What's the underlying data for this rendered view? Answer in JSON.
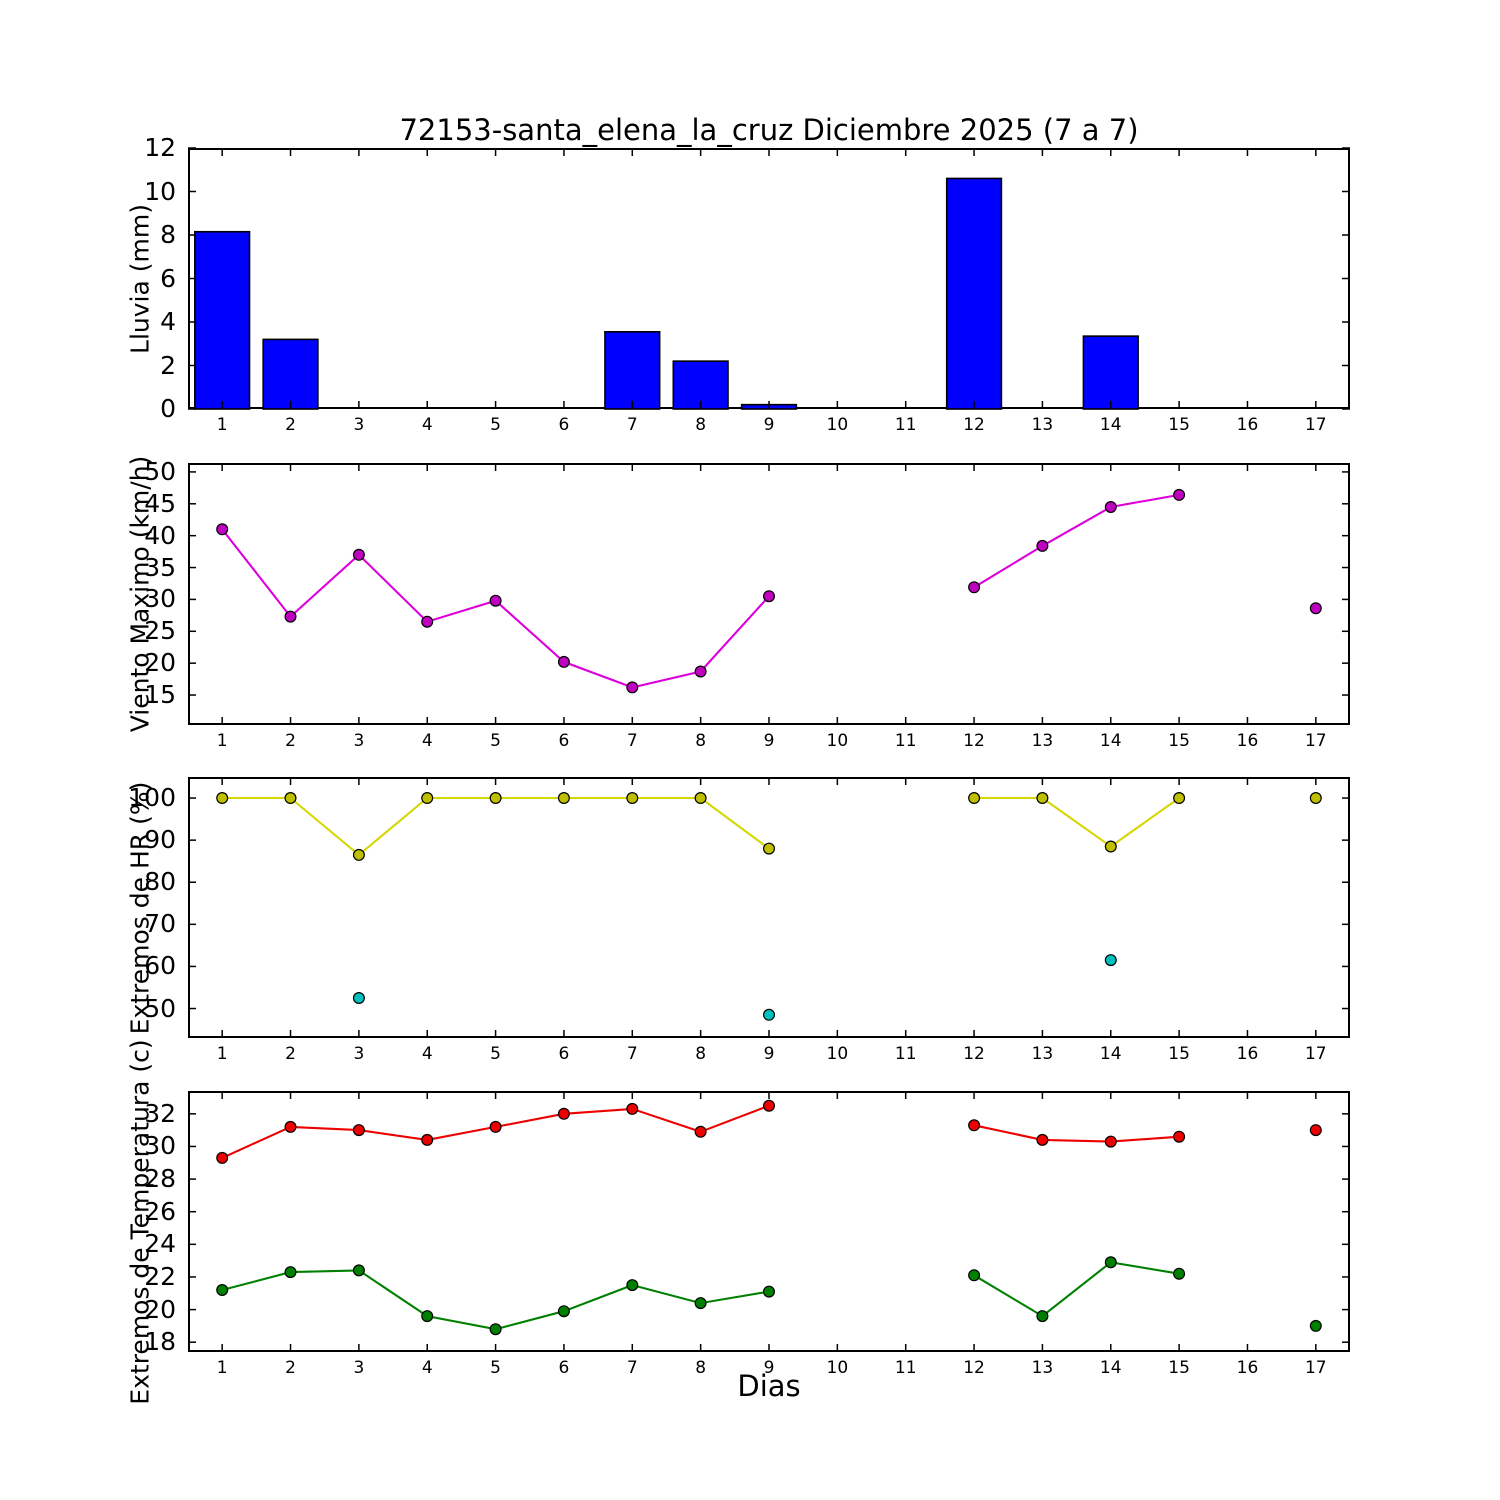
{
  "figure": {
    "title": "72153-santa_elena_la_cruz Diciembre 2025  (7 a 7)",
    "xlabel": "Dias"
  },
  "days": [
    "1",
    "2",
    "3",
    "4",
    "5",
    "6",
    "7",
    "8",
    "9",
    "10",
    "11",
    "12",
    "13",
    "14",
    "15",
    "16",
    "17"
  ],
  "chart_data": [
    {
      "type": "bar",
      "ylabel": "Lluvia (mm)",
      "xlim": [
        0.5,
        17.5
      ],
      "ylim": [
        0,
        12
      ],
      "yticks": [
        0,
        2,
        4,
        6,
        8,
        10,
        12
      ],
      "categories": [
        1,
        2,
        3,
        4,
        5,
        6,
        7,
        8,
        9,
        10,
        11,
        12,
        13,
        14,
        15,
        16,
        17
      ],
      "values": [
        8.15,
        3.2,
        0,
        0,
        0,
        0,
        3.55,
        2.2,
        0.2,
        0,
        0,
        10.6,
        0,
        3.35,
        0,
        0,
        0
      ],
      "bar_color": "#0000ff",
      "bar_edge_color": "#000000",
      "bar_width": 0.8
    },
    {
      "type": "line",
      "ylabel": "Viento Maximo (km/h)",
      "xlim": [
        0.5,
        17.5
      ],
      "ylim": [
        10.3,
        51.4
      ],
      "yticks": [
        15,
        20,
        25,
        30,
        35,
        40,
        45,
        50
      ],
      "series": [
        {
          "name": "viento-maximo",
          "line_color": "#dd00dd",
          "marker_color": "#bf00bf",
          "draw_line": true,
          "x": [
            1,
            2,
            3,
            4,
            5,
            6,
            7,
            8,
            9,
            12,
            13,
            14,
            15,
            17
          ],
          "y": [
            41.0,
            27.3,
            37.0,
            26.5,
            29.8,
            20.2,
            16.2,
            18.7,
            30.5,
            31.9,
            38.4,
            44.5,
            46.4,
            28.6
          ]
        }
      ]
    },
    {
      "type": "line",
      "ylabel": "Extremos de HR (%)",
      "xlim": [
        0.5,
        17.5
      ],
      "ylim": [
        43,
        105
      ],
      "yticks": [
        50,
        60,
        70,
        80,
        90,
        100
      ],
      "series": [
        {
          "name": "hr-maxima",
          "line_color": "#d6d600",
          "marker_color": "#bfbf00",
          "draw_line": true,
          "x": [
            1,
            2,
            3,
            4,
            5,
            6,
            7,
            8,
            9,
            12,
            13,
            14,
            15,
            17
          ],
          "y": [
            100,
            100,
            86.5,
            100,
            100,
            100,
            100,
            100,
            88,
            100,
            100,
            88.5,
            100,
            100
          ]
        },
        {
          "name": "hr-minima",
          "line_color": "#00bfbf",
          "marker_color": "#00bfbf",
          "draw_line": false,
          "x": [
            3,
            9,
            14
          ],
          "y": [
            52.5,
            48.5,
            61.5
          ]
        }
      ]
    },
    {
      "type": "line",
      "ylabel": "Extremos de Temperatura (c)",
      "xlim": [
        0.5,
        17.5
      ],
      "ylim": [
        17.4,
        33.4
      ],
      "yticks": [
        18,
        20,
        22,
        24,
        26,
        28,
        30,
        32
      ],
      "series": [
        {
          "name": "temperatura-maxima",
          "line_color": "#ee0000",
          "marker_color": "#ee0000",
          "draw_line": true,
          "x": [
            1,
            2,
            3,
            4,
            5,
            6,
            7,
            8,
            9,
            12,
            13,
            14,
            15,
            17
          ],
          "y": [
            29.3,
            31.2,
            31.0,
            30.4,
            31.2,
            32.0,
            32.3,
            30.9,
            32.5,
            31.3,
            30.4,
            30.3,
            30.6,
            31.0
          ]
        },
        {
          "name": "temperatura-minima",
          "line_color": "#008000",
          "marker_color": "#008000",
          "draw_line": true,
          "x": [
            1,
            2,
            3,
            4,
            5,
            6,
            7,
            8,
            9,
            12,
            13,
            14,
            15,
            17
          ],
          "y": [
            21.2,
            22.3,
            22.4,
            19.6,
            18.8,
            19.9,
            21.5,
            20.4,
            21.1,
            22.1,
            19.6,
            22.9,
            22.2,
            19.0
          ]
        }
      ]
    }
  ]
}
